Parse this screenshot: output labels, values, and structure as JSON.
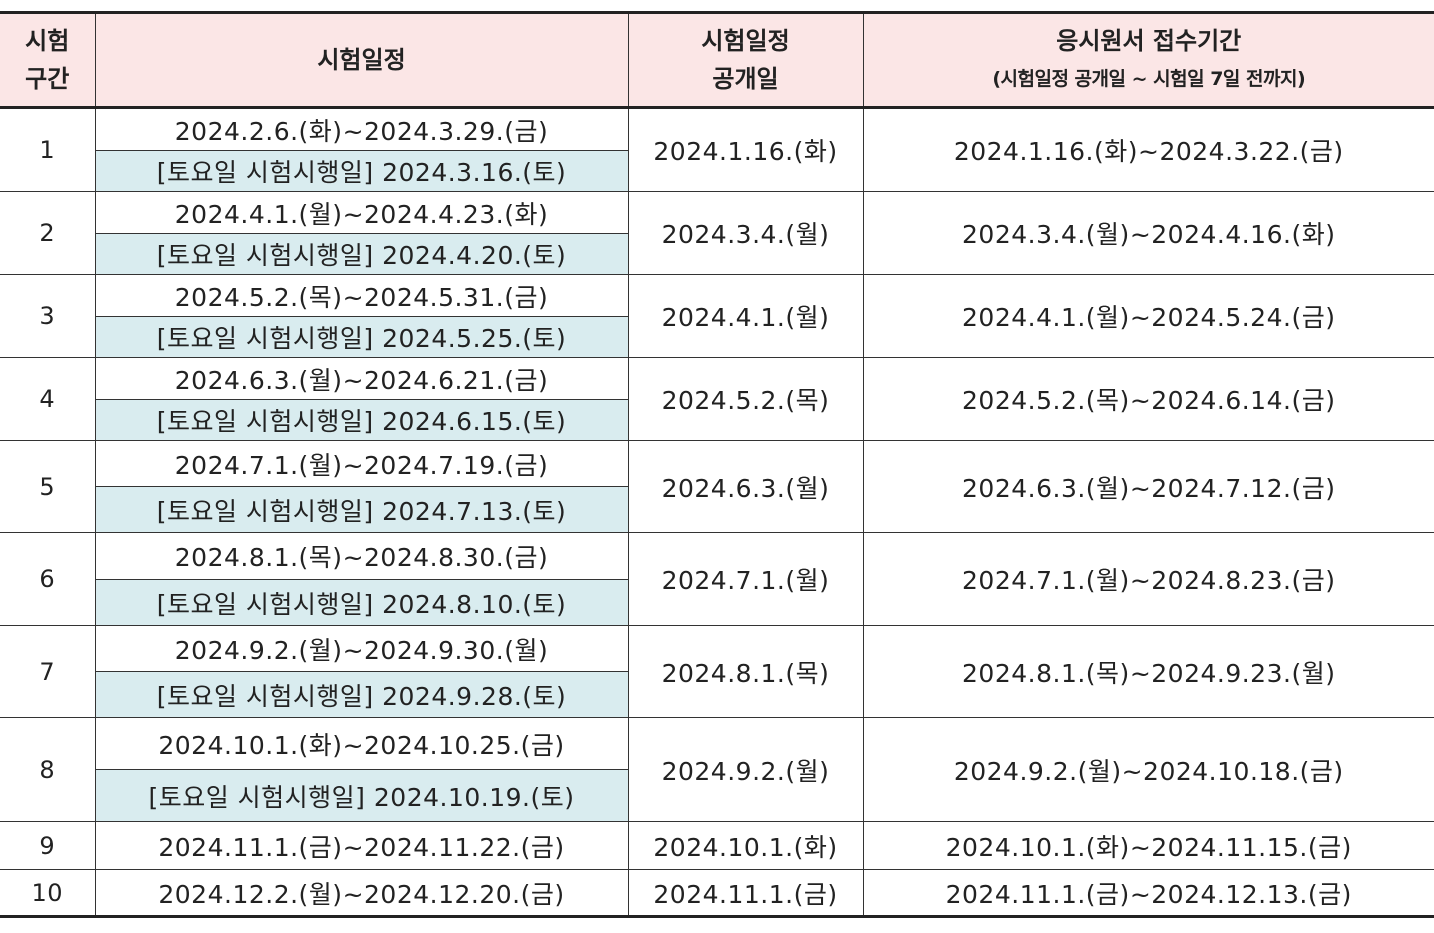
{
  "headers": {
    "col1_line1": "시험",
    "col1_line2": "구간",
    "col2": "시험일정",
    "col3_line1": "시험일정",
    "col3_line2": "공개일",
    "col4_line1": "응시원서 접수기간",
    "col4_line2": "(시험일정 공개일 ~ 시험일 7일 전까지)"
  },
  "saturday_prefix": "[토요일 시험시행일]",
  "rows": [
    {
      "no": "1",
      "schedule": "2024.2.6.(화)~2024.3.29.(금)",
      "saturday_date": "2024.3.16.(토)",
      "open": "2024.1.16.(화)",
      "apply": "2024.1.16.(화)~2024.3.22.(금)"
    },
    {
      "no": "2",
      "schedule": "2024.4.1.(월)~2024.4.23.(화)",
      "saturday_date": "2024.4.20.(토)",
      "open": "2024.3.4.(월)",
      "apply": "2024.3.4.(월)~2024.4.16.(화)"
    },
    {
      "no": "3",
      "schedule": "2024.5.2.(목)~2024.5.31.(금)",
      "saturday_date": "2024.5.25.(토)",
      "open": "2024.4.1.(월)",
      "apply": "2024.4.1.(월)~2024.5.24.(금)"
    },
    {
      "no": "4",
      "schedule": "2024.6.3.(월)~2024.6.21.(금)",
      "saturday_date": "2024.6.15.(토)",
      "open": "2024.5.2.(목)",
      "apply": "2024.5.2.(목)~2024.6.14.(금)"
    },
    {
      "no": "5",
      "schedule": "2024.7.1.(월)~2024.7.19.(금)",
      "saturday_date": "2024.7.13.(토)",
      "open": "2024.6.3.(월)",
      "apply": "2024.6.3.(월)~2024.7.12.(금)"
    },
    {
      "no": "6",
      "schedule": "2024.8.1.(목)~2024.8.30.(금)",
      "saturday_date": "2024.8.10.(토)",
      "open": "2024.7.1.(월)",
      "apply": "2024.7.1.(월)~2024.8.23.(금)"
    },
    {
      "no": "7",
      "schedule": "2024.9.2.(월)~2024.9.30.(월)",
      "saturday_date": "2024.9.28.(토)",
      "open": "2024.8.1.(목)",
      "apply": "2024.8.1.(목)~2024.9.23.(월)"
    },
    {
      "no": "8",
      "schedule": "2024.10.1.(화)~2024.10.25.(금)",
      "saturday_date": "2024.10.19.(토)",
      "open": "2024.9.2.(월)",
      "apply": "2024.9.2.(월)~2024.10.18.(금)"
    },
    {
      "no": "9",
      "schedule": "2024.11.1.(금)~2024.11.22.(금)",
      "open": "2024.10.1.(화)",
      "apply": "2024.10.1.(화)~2024.11.15.(금)"
    },
    {
      "no": "10",
      "schedule": "2024.12.2.(월)~2024.12.20.(금)",
      "open": "2024.11.1.(금)",
      "apply": "2024.11.1.(금)~2024.12.13.(금)"
    }
  ],
  "colors": {
    "header_bg": "#fbe6e6",
    "saturday_bg": "#d9ecef",
    "rule": "#222222"
  }
}
